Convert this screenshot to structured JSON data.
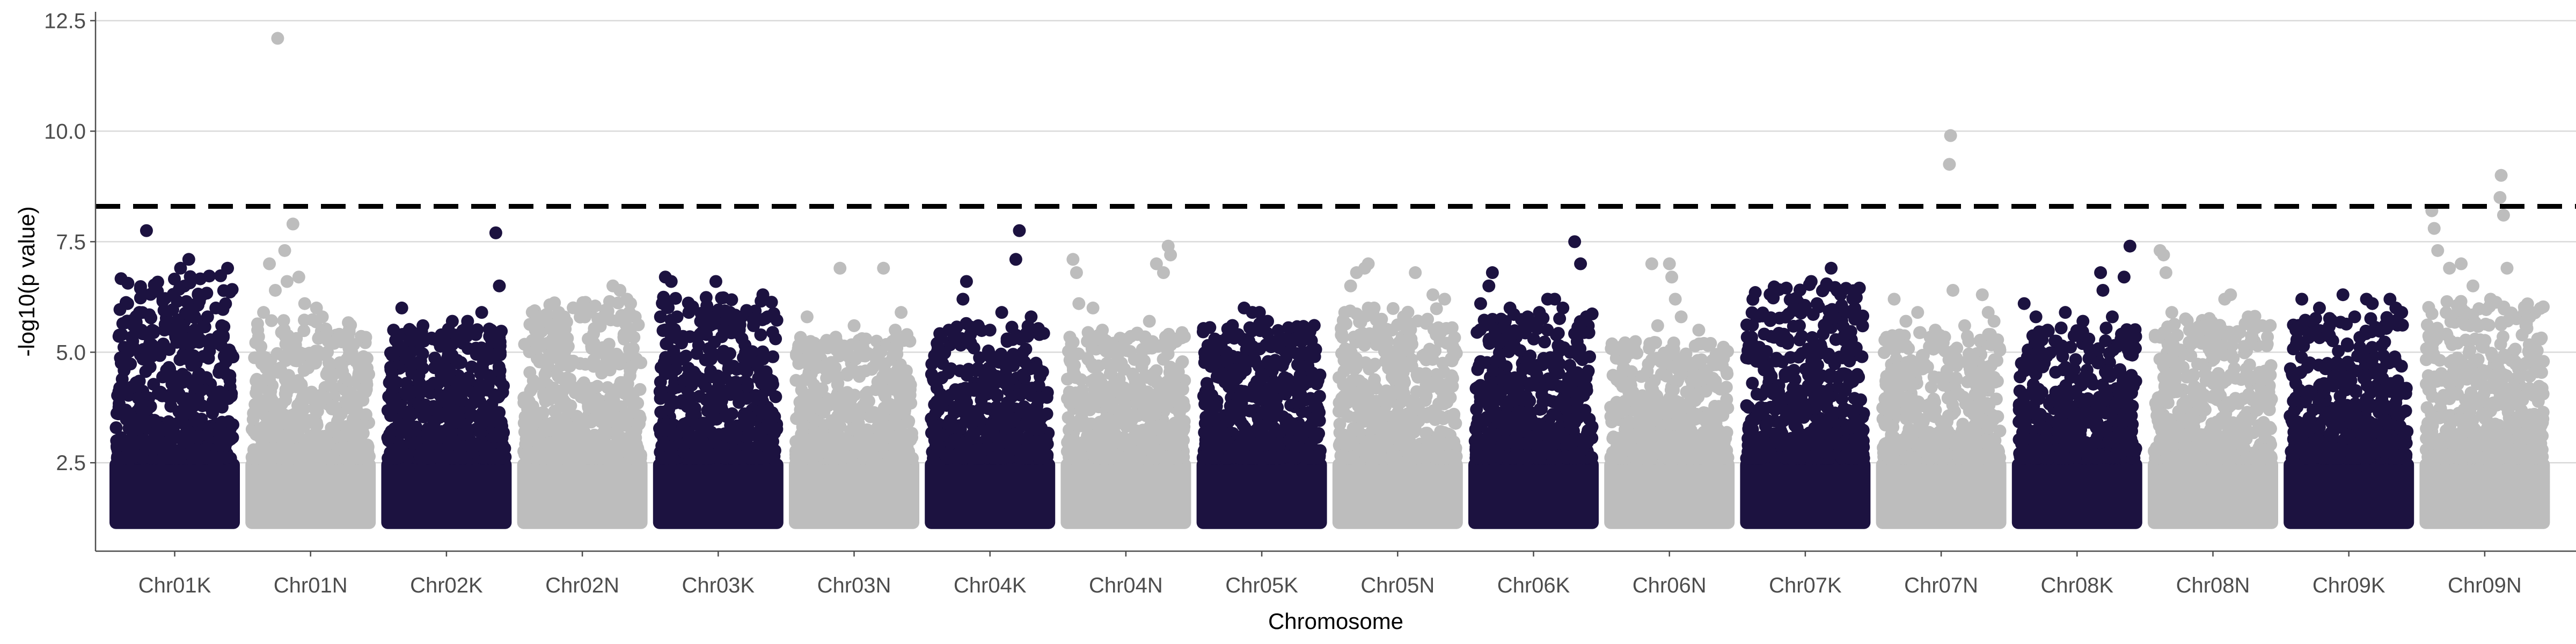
{
  "chart_data": {
    "type": "scatter",
    "subtype": "manhattan",
    "title": "",
    "xlabel": "Chromosome",
    "ylabel": "-log10(p value)",
    "ylim": [
      0.5,
      12.7
    ],
    "yticks": [
      2.5,
      5.0,
      7.5,
      10.0,
      12.5
    ],
    "ytick_labels": [
      "2.5",
      "5.0",
      "7.5",
      "10.0",
      "12.5"
    ],
    "grid": "horizontal major",
    "threshold": 8.3,
    "colors": {
      "dark": "#1c1240",
      "light": "#bdbdbd",
      "grid": "#d9d9d9",
      "axis": "#4d4d4d",
      "threshold": "#000000"
    },
    "categories": [
      "Chr01K",
      "Chr01N",
      "Chr02K",
      "Chr02N",
      "Chr03K",
      "Chr03N",
      "Chr04K",
      "Chr04N",
      "Chr05K",
      "Chr05N",
      "Chr06K",
      "Chr06N",
      "Chr07K",
      "Chr07N",
      "Chr08K",
      "Chr08N",
      "Chr09K",
      "Chr09N"
    ],
    "chromosomes": [
      {
        "name": "Chr01K",
        "color": "dark",
        "max_y": 7.1,
        "peaks": [
          [
            0.62,
            7.1
          ],
          [
            0.55,
            6.9
          ],
          [
            0.95,
            6.9
          ],
          [
            0.26,
            7.75
          ],
          [
            0.1,
            6.1
          ],
          [
            0.4,
            6.2
          ],
          [
            0.7,
            6.3
          ],
          [
            0.85,
            6.0
          ],
          [
            0.05,
            5.4
          ],
          [
            0.2,
            5.9
          ],
          [
            0.33,
            5.1
          ],
          [
            0.48,
            5.5
          ],
          [
            0.78,
            5.8
          ],
          [
            0.9,
            5.6
          ],
          [
            0.15,
            5.6
          ],
          [
            0.58,
            5.2
          ]
        ]
      },
      {
        "name": "Chr01N",
        "color": "light",
        "max_y": 6.1,
        "peaks": [
          [
            0.22,
            12.1
          ],
          [
            0.35,
            7.9
          ],
          [
            0.28,
            7.3
          ],
          [
            0.15,
            7.0
          ],
          [
            0.3,
            6.6
          ],
          [
            0.4,
            6.7
          ],
          [
            0.45,
            6.1
          ],
          [
            0.55,
            6.0
          ],
          [
            0.6,
            5.8
          ],
          [
            0.2,
            6.4
          ],
          [
            0.05,
            5.5
          ],
          [
            0.7,
            5.2
          ],
          [
            0.85,
            5.0
          ],
          [
            0.95,
            4.9
          ],
          [
            0.1,
            5.9
          ]
        ]
      },
      {
        "name": "Chr02K",
        "color": "dark",
        "max_y": 5.9,
        "peaks": [
          [
            0.92,
            7.7
          ],
          [
            0.95,
            6.5
          ],
          [
            0.12,
            6.0
          ],
          [
            0.3,
            5.6
          ],
          [
            0.55,
            5.7
          ],
          [
            0.68,
            5.7
          ],
          [
            0.8,
            5.9
          ],
          [
            0.88,
            5.5
          ],
          [
            0.2,
            5.0
          ],
          [
            0.45,
            5.3
          ],
          [
            0.75,
            5.4
          ],
          [
            0.05,
            5.5
          ]
        ]
      },
      {
        "name": "Chr02N",
        "color": "light",
        "max_y": 6.5,
        "peaks": [
          [
            0.76,
            6.5
          ],
          [
            0.82,
            6.4
          ],
          [
            0.88,
            6.2
          ],
          [
            0.9,
            5.9
          ],
          [
            0.1,
            5.5
          ],
          [
            0.3,
            5.9
          ],
          [
            0.55,
            5.3
          ],
          [
            0.65,
            5.0
          ],
          [
            0.95,
            5.8
          ],
          [
            0.4,
            4.8
          ],
          [
            0.2,
            5.2
          ]
        ]
      },
      {
        "name": "Chr03K",
        "color": "dark",
        "max_y": 6.6,
        "peaks": [
          [
            0.05,
            6.7
          ],
          [
            0.1,
            6.6
          ],
          [
            0.48,
            6.6
          ],
          [
            0.88,
            6.3
          ],
          [
            0.15,
            5.8
          ],
          [
            0.25,
            5.9
          ],
          [
            0.35,
            5.7
          ],
          [
            0.6,
            5.9
          ],
          [
            0.7,
            5.8
          ],
          [
            0.8,
            5.6
          ],
          [
            0.92,
            5.8
          ],
          [
            0.4,
            5.4
          ],
          [
            0.55,
            5.5
          ]
        ]
      },
      {
        "name": "Chr03N",
        "color": "light",
        "max_y": 5.7,
        "peaks": [
          [
            0.38,
            6.9
          ],
          [
            0.75,
            6.9
          ],
          [
            0.1,
            5.8
          ],
          [
            0.5,
            5.6
          ],
          [
            0.6,
            5.3
          ],
          [
            0.85,
            5.5
          ],
          [
            0.9,
            5.9
          ],
          [
            0.25,
            5.2
          ],
          [
            0.95,
            5.4
          ]
        ]
      },
      {
        "name": "Chr04K",
        "color": "dark",
        "max_y": 6.0,
        "peaks": [
          [
            0.75,
            7.75
          ],
          [
            0.72,
            7.1
          ],
          [
            0.3,
            6.6
          ],
          [
            0.27,
            6.2
          ],
          [
            0.05,
            5.2
          ],
          [
            0.15,
            5.5
          ],
          [
            0.4,
            5.6
          ],
          [
            0.5,
            5.5
          ],
          [
            0.6,
            5.9
          ],
          [
            0.85,
            5.8
          ],
          [
            0.92,
            5.4
          ],
          [
            0.2,
            5.3
          ]
        ]
      },
      {
        "name": "Chr04N",
        "color": "light",
        "max_y": 5.8,
        "peaks": [
          [
            0.05,
            7.1
          ],
          [
            0.08,
            6.8
          ],
          [
            0.22,
            6.0
          ],
          [
            0.76,
            7.0
          ],
          [
            0.82,
            6.8
          ],
          [
            0.86,
            7.4
          ],
          [
            0.88,
            7.2
          ],
          [
            0.1,
            6.1
          ],
          [
            0.3,
            5.5
          ],
          [
            0.45,
            5.1
          ],
          [
            0.6,
            5.4
          ],
          [
            0.7,
            5.7
          ],
          [
            0.92,
            5.3
          ]
        ]
      },
      {
        "name": "Chr05K",
        "color": "dark",
        "max_y": 6.0,
        "peaks": [
          [
            0.35,
            6.0
          ],
          [
            0.42,
            5.9
          ],
          [
            0.48,
            5.9
          ],
          [
            0.55,
            5.7
          ],
          [
            0.1,
            5.3
          ],
          [
            0.2,
            5.0
          ],
          [
            0.65,
            5.1
          ],
          [
            0.75,
            5.2
          ],
          [
            0.85,
            5.0
          ],
          [
            0.95,
            4.9
          ],
          [
            0.3,
            5.4
          ]
        ]
      },
      {
        "name": "Chr05N",
        "color": "light",
        "max_y": 6.4,
        "peaks": [
          [
            0.22,
            6.9
          ],
          [
            0.25,
            7.0
          ],
          [
            0.15,
            6.8
          ],
          [
            0.1,
            6.5
          ],
          [
            0.65,
            6.8
          ],
          [
            0.8,
            6.3
          ],
          [
            0.05,
            5.9
          ],
          [
            0.35,
            5.6
          ],
          [
            0.45,
            5.5
          ],
          [
            0.55,
            5.8
          ],
          [
            0.9,
            6.2
          ],
          [
            0.3,
            6.0
          ]
        ]
      },
      {
        "name": "Chr06K",
        "color": "dark",
        "max_y": 6.3,
        "peaks": [
          [
            0.15,
            6.8
          ],
          [
            0.12,
            6.5
          ],
          [
            0.62,
            6.2
          ],
          [
            0.68,
            6.2
          ],
          [
            0.85,
            7.5
          ],
          [
            0.9,
            7.0
          ],
          [
            0.3,
            6.0
          ],
          [
            0.45,
            5.8
          ],
          [
            0.55,
            5.9
          ],
          [
            0.75,
            6.0
          ],
          [
            0.05,
            6.1
          ],
          [
            0.95,
            5.8
          ]
        ]
      },
      {
        "name": "Chr06N",
        "color": "light",
        "max_y": 5.6,
        "peaks": [
          [
            0.35,
            7.0
          ],
          [
            0.5,
            7.0
          ],
          [
            0.52,
            6.7
          ],
          [
            0.55,
            6.2
          ],
          [
            0.6,
            5.8
          ],
          [
            0.2,
            5.1
          ],
          [
            0.75,
            5.5
          ],
          [
            0.85,
            5.2
          ],
          [
            0.1,
            4.8
          ],
          [
            0.95,
            4.7
          ],
          [
            0.4,
            5.6
          ]
        ]
      },
      {
        "name": "Chr07K",
        "color": "dark",
        "max_y": 6.9,
        "peaks": [
          [
            0.72,
            6.9
          ],
          [
            0.55,
            6.6
          ],
          [
            0.68,
            6.5
          ],
          [
            0.6,
            6.1
          ],
          [
            0.8,
            6.3
          ],
          [
            0.5,
            6.0
          ],
          [
            0.88,
            5.9
          ],
          [
            0.45,
            5.6
          ],
          [
            0.35,
            5.2
          ],
          [
            0.25,
            4.8
          ],
          [
            0.15,
            4.6
          ],
          [
            0.05,
            4.3
          ],
          [
            0.95,
            5.8
          ],
          [
            0.65,
            6.4
          ]
        ]
      },
      {
        "name": "Chr07N",
        "color": "light",
        "max_y": 5.8,
        "peaks": [
          [
            0.58,
            9.9
          ],
          [
            0.57,
            9.25
          ],
          [
            0.6,
            6.4
          ],
          [
            0.1,
            6.2
          ],
          [
            0.2,
            5.7
          ],
          [
            0.3,
            5.9
          ],
          [
            0.45,
            5.5
          ],
          [
            0.7,
            5.6
          ],
          [
            0.85,
            6.3
          ],
          [
            0.9,
            5.9
          ],
          [
            0.95,
            5.7
          ]
        ]
      },
      {
        "name": "Chr08K",
        "color": "dark",
        "max_y": 5.9,
        "peaks": [
          [
            0.7,
            6.8
          ],
          [
            0.72,
            6.4
          ],
          [
            0.95,
            7.4
          ],
          [
            0.9,
            6.7
          ],
          [
            0.05,
            6.1
          ],
          [
            0.15,
            5.8
          ],
          [
            0.25,
            5.5
          ],
          [
            0.4,
            5.9
          ],
          [
            0.55,
            5.7
          ],
          [
            0.8,
            5.8
          ],
          [
            0.6,
            5.3
          ]
        ]
      },
      {
        "name": "Chr08N",
        "color": "light",
        "max_y": 6.2,
        "peaks": [
          [
            0.05,
            7.3
          ],
          [
            0.08,
            7.2
          ],
          [
            0.1,
            6.8
          ],
          [
            0.6,
            6.2
          ],
          [
            0.65,
            6.3
          ],
          [
            0.15,
            5.9
          ],
          [
            0.3,
            5.5
          ],
          [
            0.45,
            5.2
          ],
          [
            0.8,
            5.8
          ],
          [
            0.92,
            5.6
          ]
        ]
      },
      {
        "name": "Chr09K",
        "color": "dark",
        "max_y": 6.2,
        "peaks": [
          [
            0.1,
            6.2
          ],
          [
            0.25,
            6.0
          ],
          [
            0.45,
            6.3
          ],
          [
            0.65,
            6.2
          ],
          [
            0.7,
            6.1
          ],
          [
            0.85,
            6.2
          ],
          [
            0.9,
            6.0
          ],
          [
            0.35,
            5.7
          ],
          [
            0.55,
            5.8
          ],
          [
            0.05,
            5.5
          ],
          [
            0.95,
            5.9
          ]
        ]
      },
      {
        "name": "Chr09N",
        "color": "light",
        "max_y": 6.5,
        "peaks": [
          [
            0.64,
            9.0
          ],
          [
            0.63,
            8.5
          ],
          [
            0.66,
            8.1
          ],
          [
            0.69,
            6.9
          ],
          [
            0.05,
            8.2
          ],
          [
            0.07,
            7.8
          ],
          [
            0.1,
            7.3
          ],
          [
            0.2,
            6.9
          ],
          [
            0.3,
            7.0
          ],
          [
            0.4,
            6.5
          ],
          [
            0.55,
            6.2
          ],
          [
            0.75,
            5.8
          ],
          [
            0.85,
            5.6
          ],
          [
            0.95,
            5.3
          ]
        ]
      }
    ]
  }
}
